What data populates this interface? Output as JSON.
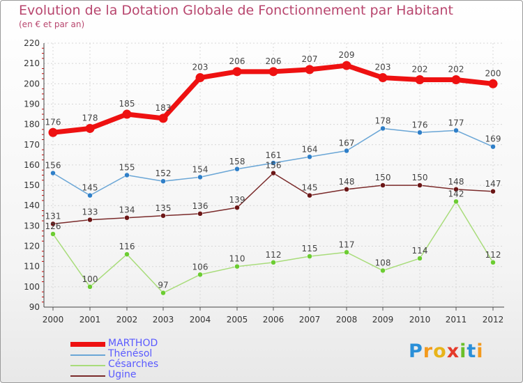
{
  "title": "Evolution de la Dotation Globale de Fonctionnement par Habitant",
  "subtitle": "(en € et par an)",
  "brand": {
    "letters": [
      {
        "ch": "P",
        "color": "#2a8fd8"
      },
      {
        "ch": "r",
        "color": "#f39a1e"
      },
      {
        "ch": "o",
        "color": "#e8b41a"
      },
      {
        "ch": "x",
        "color": "#e53a2a"
      },
      {
        "ch": "i",
        "color": "#6bbf2a"
      },
      {
        "ch": "t",
        "color": "#2a8fd8"
      },
      {
        "ch": "i",
        "color": "#f39a1e"
      }
    ]
  },
  "chart_data": {
    "type": "line",
    "categories": [
      "2000",
      "2001",
      "2002",
      "2003",
      "2004",
      "2005",
      "2006",
      "2007",
      "2008",
      "2009",
      "2010",
      "2011",
      "2012"
    ],
    "ylim": [
      90,
      220
    ],
    "yticks": [
      "90",
      "100",
      "110",
      "120",
      "130",
      "140",
      "150",
      "160",
      "170",
      "180",
      "190",
      "200",
      "210",
      "220"
    ],
    "grid": true,
    "legend_position": "bottom-left",
    "series": [
      {
        "name": "MARTHOD",
        "color": "#ee1111",
        "bold": true,
        "values": [
          176,
          178,
          185,
          183,
          203,
          206,
          206,
          207,
          209,
          203,
          202,
          202,
          200
        ],
        "labels": [
          "176",
          "178",
          "185",
          "183",
          "203",
          "206",
          "206",
          "207",
          "209",
          "203",
          "202",
          "202",
          "200"
        ]
      },
      {
        "name": "Thénésol",
        "color": "#6aa6d6",
        "marker": "#2f7fc8",
        "values": [
          156,
          145,
          155,
          152,
          154,
          158,
          161,
          164,
          167,
          178,
          176,
          177,
          169
        ],
        "labels": [
          "156",
          "145",
          "155",
          "152",
          "154",
          "158",
          "161",
          "164",
          "167",
          "178",
          "176",
          "177",
          "169"
        ]
      },
      {
        "name": "Césarches",
        "color": "#a8dc7a",
        "marker": "#6ccc32",
        "values": [
          126,
          100,
          116,
          97,
          106,
          110,
          112,
          115,
          117,
          108,
          114,
          142,
          112
        ],
        "labels": [
          "126",
          "100",
          "116",
          "97",
          "106",
          "110",
          "112",
          "115",
          "117",
          "108",
          "114",
          "142",
          "112"
        ]
      },
      {
        "name": "Ugine",
        "color": "#7a2a2a",
        "marker": "#6b1616",
        "values": [
          131,
          133,
          134,
          135,
          136,
          139,
          156,
          145,
          148,
          150,
          150,
          148,
          147
        ],
        "labels": [
          "131",
          "133",
          "134",
          "135",
          "136",
          "139",
          "156",
          "145",
          "148",
          "150",
          "150",
          "148",
          "147"
        ]
      }
    ]
  }
}
